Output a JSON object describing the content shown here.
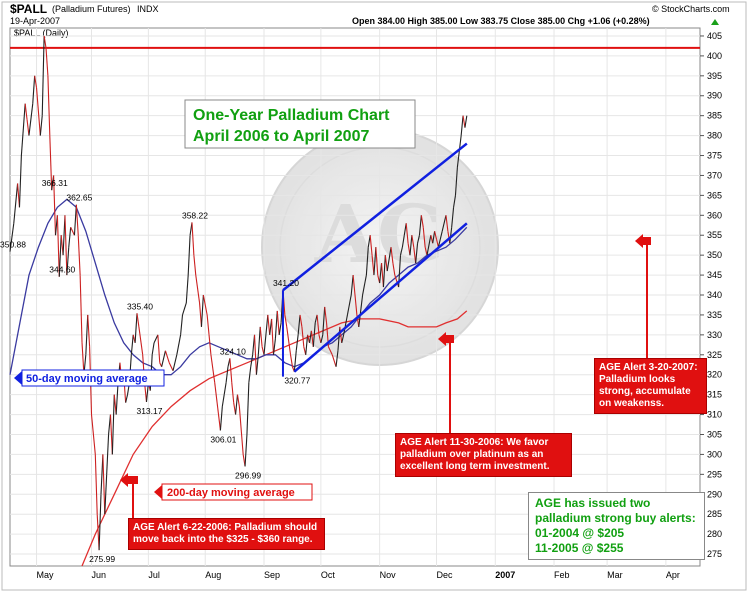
{
  "header": {
    "symbol": "$PALL",
    "name": "(Palladium Futures)",
    "exchange": "INDX",
    "date": "19-Apr-2007",
    "ohlc": "Open 384.00   High 385.00   Low 383.75   Close 385.00   Chg +1.06 (+0.28%)",
    "arrow_icon": "up-arrow-icon",
    "watermark": "© StockCharts.com",
    "series_label": "$PALL (Daily)"
  },
  "title": {
    "line1": "One-Year Palladium Chart",
    "line2": "April 2006 to April 2007"
  },
  "labels": {
    "ma50": "50-day moving average",
    "ma200": "200-day moving average",
    "alert_jun": "AGE Alert 6-22-2006: Palladium should move back into the $325 - $360 range.",
    "alert_nov": "AGE Alert 11-30-2006: We favor palladium over platinum as an excellent long term investment.",
    "alert_mar": "AGE Alert 3-20-2007: Palladium looks strong, accumulate on weakenss.",
    "buy_alerts": [
      "AGE has issued two",
      "palladium strong buy alerts:",
      "01-2004 @ $205",
      "11-2005 @ $255"
    ]
  },
  "colors": {
    "price": "#cc2020",
    "ma50": "#3a3aa0",
    "ma200": "#e03030",
    "trend": "#1020e0",
    "resistance": "#e01010",
    "title_text": "#11a011",
    "alert_text": "#ffffff",
    "alert_bg": "#e01010"
  },
  "chart_data": {
    "type": "line",
    "ylim": [
      272,
      407
    ],
    "y_ticks": [
      275,
      280,
      285,
      290,
      295,
      300,
      305,
      310,
      315,
      320,
      325,
      330,
      335,
      340,
      345,
      350,
      355,
      360,
      365,
      370,
      375,
      380,
      385,
      390,
      395,
      400,
      405
    ],
    "x_ticks": [
      {
        "label": "May",
        "x": 14
      },
      {
        "label": "Jun",
        "x": 43
      },
      {
        "label": "Jul",
        "x": 73
      },
      {
        "label": "Aug",
        "x": 103
      },
      {
        "label": "Sep",
        "x": 134
      },
      {
        "label": "Oct",
        "x": 164
      },
      {
        "label": "Nov",
        "x": 195
      },
      {
        "label": "Dec",
        "x": 225
      },
      {
        "label": "2007",
        "x": 256
      },
      {
        "label": "Feb",
        "x": 287
      },
      {
        "label": "Mar",
        "x": 315
      },
      {
        "label": "Apr",
        "x": 346
      }
    ],
    "xlim": [
      0,
      364
    ],
    "price_series": [
      [
        0,
        350.88
      ],
      [
        2,
        358
      ],
      [
        4,
        368
      ],
      [
        5,
        362
      ],
      [
        6,
        375
      ],
      [
        8,
        388
      ],
      [
        9,
        384
      ],
      [
        10,
        380
      ],
      [
        12,
        388
      ],
      [
        13,
        395
      ],
      [
        14,
        392
      ],
      [
        16,
        380
      ],
      [
        17,
        385
      ],
      [
        18,
        405
      ],
      [
        19,
        402
      ],
      [
        20,
        395
      ],
      [
        21,
        380
      ],
      [
        22,
        366.31
      ],
      [
        23,
        370
      ],
      [
        24,
        355
      ],
      [
        25,
        360
      ],
      [
        26,
        344.6
      ],
      [
        27,
        355
      ],
      [
        28,
        350
      ],
      [
        29,
        360
      ],
      [
        30,
        345
      ],
      [
        31,
        352
      ],
      [
        32,
        357
      ],
      [
        34,
        355
      ],
      [
        35,
        362.65
      ],
      [
        36,
        355
      ],
      [
        37,
        345
      ],
      [
        38,
        328
      ],
      [
        39,
        320
      ],
      [
        40,
        325
      ],
      [
        41,
        335
      ],
      [
        42,
        327
      ],
      [
        43,
        310
      ],
      [
        45,
        300
      ],
      [
        46,
        285
      ],
      [
        47,
        275.99
      ],
      [
        48,
        290
      ],
      [
        49,
        300
      ],
      [
        50,
        285
      ],
      [
        51,
        295
      ],
      [
        52,
        305
      ],
      [
        53,
        310
      ],
      [
        54,
        300
      ],
      [
        55,
        315
      ],
      [
        56,
        310
      ],
      [
        57,
        318
      ],
      [
        58,
        323
      ],
      [
        59,
        318
      ],
      [
        60,
        320
      ],
      [
        61,
        313
      ],
      [
        62,
        315
      ],
      [
        63,
        318
      ],
      [
        64,
        325
      ],
      [
        65,
        330
      ],
      [
        66,
        328
      ],
      [
        67,
        335.4
      ],
      [
        68,
        332
      ],
      [
        70,
        325
      ],
      [
        71,
        318
      ],
      [
        72,
        313.17
      ],
      [
        73,
        318
      ],
      [
        74,
        316
      ],
      [
        75,
        325
      ],
      [
        76,
        328
      ],
      [
        78,
        330
      ],
      [
        79,
        323
      ],
      [
        80,
        322
      ],
      [
        82,
        326
      ],
      [
        84,
        323
      ],
      [
        86,
        321
      ],
      [
        88,
        325
      ],
      [
        90,
        330
      ],
      [
        91,
        335
      ],
      [
        93,
        338
      ],
      [
        94,
        345
      ],
      [
        95,
        355
      ],
      [
        96,
        358.22
      ],
      [
        97,
        350
      ],
      [
        98,
        345
      ],
      [
        100,
        338
      ],
      [
        101,
        332
      ],
      [
        102,
        340
      ],
      [
        104,
        335
      ],
      [
        105,
        330
      ],
      [
        106,
        325
      ],
      [
        108,
        318
      ],
      [
        110,
        310
      ],
      [
        111,
        306.01
      ],
      [
        112,
        312
      ],
      [
        113,
        315
      ],
      [
        114,
        318
      ],
      [
        115,
        322
      ],
      [
        116,
        324.1
      ],
      [
        117,
        318
      ],
      [
        118,
        313
      ],
      [
        119,
        310
      ],
      [
        120,
        315
      ],
      [
        121,
        312
      ],
      [
        122,
        306
      ],
      [
        123,
        300
      ],
      [
        124,
        296.99
      ],
      [
        125,
        305
      ],
      [
        126,
        318
      ],
      [
        127,
        322
      ],
      [
        128,
        325
      ],
      [
        129,
        330
      ],
      [
        130,
        320
      ],
      [
        131,
        325
      ],
      [
        132,
        332
      ],
      [
        133,
        327
      ],
      [
        134,
        325
      ],
      [
        136,
        335
      ],
      [
        137,
        330
      ],
      [
        138,
        334
      ],
      [
        139,
        325
      ],
      [
        140,
        329
      ],
      [
        141,
        336
      ],
      [
        142,
        330
      ],
      [
        143,
        333
      ],
      [
        144,
        341.2
      ],
      [
        145,
        335
      ],
      [
        146,
        332
      ],
      [
        148,
        325
      ],
      [
        149,
        322
      ],
      [
        150,
        320.77
      ],
      [
        151,
        326
      ],
      [
        152,
        330
      ],
      [
        153,
        335
      ],
      [
        154,
        332
      ],
      [
        155,
        327
      ],
      [
        156,
        325
      ],
      [
        157,
        330
      ],
      [
        158,
        328
      ],
      [
        159,
        331
      ],
      [
        160,
        327
      ],
      [
        161,
        333
      ],
      [
        162,
        335
      ],
      [
        163,
        330
      ],
      [
        164,
        328
      ],
      [
        165,
        330
      ],
      [
        166,
        337
      ],
      [
        167,
        333
      ],
      [
        168,
        327
      ],
      [
        170,
        325
      ],
      [
        172,
        322
      ],
      [
        173,
        326
      ],
      [
        174,
        332
      ],
      [
        175,
        328
      ],
      [
        176,
        330
      ],
      [
        178,
        335
      ],
      [
        180,
        340
      ],
      [
        181,
        345
      ],
      [
        182,
        340
      ],
      [
        183,
        335
      ],
      [
        184,
        332
      ],
      [
        186,
        340
      ],
      [
        188,
        345
      ],
      [
        189,
        352
      ],
      [
        190,
        355
      ],
      [
        191,
        350
      ],
      [
        192,
        345
      ],
      [
        193,
        352
      ],
      [
        194,
        345
      ],
      [
        195,
        343
      ],
      [
        196,
        348
      ],
      [
        197,
        342
      ],
      [
        198,
        350
      ],
      [
        199,
        346
      ],
      [
        201,
        352
      ],
      [
        202,
        348
      ],
      [
        203,
        345
      ],
      [
        205,
        342
      ],
      [
        206,
        350
      ],
      [
        207,
        352
      ],
      [
        208,
        355
      ],
      [
        209,
        358
      ],
      [
        210,
        353
      ],
      [
        211,
        350
      ],
      [
        212,
        355
      ],
      [
        213,
        352
      ],
      [
        214,
        348
      ],
      [
        215,
        353
      ],
      [
        216,
        355
      ],
      [
        217,
        360
      ],
      [
        218,
        357
      ],
      [
        219,
        352
      ],
      [
        220,
        350
      ],
      [
        222,
        355
      ],
      [
        223,
        353
      ],
      [
        224,
        356
      ],
      [
        225,
        354
      ],
      [
        226,
        352
      ],
      [
        228,
        356
      ],
      [
        230,
        360
      ],
      [
        231,
        356
      ],
      [
        232,
        353
      ],
      [
        233,
        357
      ],
      [
        234,
        362
      ],
      [
        235,
        365
      ],
      [
        236,
        372
      ],
      [
        237,
        376
      ],
      [
        238,
        380
      ],
      [
        239,
        385
      ],
      [
        240,
        382
      ],
      [
        241,
        385
      ]
    ],
    "ma50_series": [
      [
        0,
        320
      ],
      [
        6,
        335
      ],
      [
        10,
        345
      ],
      [
        15,
        352
      ],
      [
        20,
        358
      ],
      [
        25,
        362
      ],
      [
        30,
        364
      ],
      [
        35,
        362
      ],
      [
        40,
        356
      ],
      [
        45,
        348
      ],
      [
        50,
        340
      ],
      [
        55,
        333
      ],
      [
        60,
        328
      ],
      [
        65,
        325
      ],
      [
        70,
        323
      ],
      [
        75,
        322
      ],
      [
        80,
        320
      ],
      [
        85,
        320
      ],
      [
        90,
        322
      ],
      [
        95,
        325
      ],
      [
        100,
        327
      ],
      [
        105,
        328
      ],
      [
        110,
        327
      ],
      [
        115,
        326
      ],
      [
        120,
        325
      ],
      [
        125,
        324
      ],
      [
        130,
        324
      ],
      [
        135,
        325
      ],
      [
        140,
        325
      ],
      [
        145,
        323
      ],
      [
        150,
        322
      ],
      [
        155,
        323
      ],
      [
        160,
        325
      ],
      [
        165,
        327
      ],
      [
        170,
        328
      ],
      [
        175,
        330
      ],
      [
        180,
        332
      ],
      [
        185,
        335
      ],
      [
        190,
        338
      ],
      [
        195,
        340
      ],
      [
        200,
        343
      ],
      [
        205,
        345
      ],
      [
        210,
        347
      ],
      [
        215,
        348
      ],
      [
        220,
        350
      ],
      [
        225,
        351
      ],
      [
        230,
        352
      ],
      [
        235,
        354
      ],
      [
        241,
        357
      ]
    ],
    "ma200_series": [
      [
        38,
        272
      ],
      [
        45,
        280
      ],
      [
        55,
        290
      ],
      [
        65,
        300
      ],
      [
        75,
        307
      ],
      [
        85,
        312
      ],
      [
        95,
        316
      ],
      [
        105,
        319
      ],
      [
        115,
        321
      ],
      [
        125,
        323
      ],
      [
        135,
        325
      ],
      [
        145,
        327
      ],
      [
        155,
        329
      ],
      [
        165,
        331
      ],
      [
        175,
        333
      ],
      [
        185,
        334
      ],
      [
        195,
        334
      ],
      [
        205,
        333
      ],
      [
        210,
        332
      ],
      [
        215,
        332
      ],
      [
        225,
        332
      ],
      [
        230,
        333
      ],
      [
        236,
        334
      ],
      [
        241,
        336
      ]
    ],
    "channel_upper": [
      [
        144,
        341.2
      ],
      [
        241,
        378
      ]
    ],
    "channel_lower": [
      [
        150,
        320.77
      ],
      [
        241,
        358
      ]
    ],
    "resistance_level": 402,
    "peak_labels": [
      {
        "x": 0,
        "y": 350.88,
        "text": "350.88"
      },
      {
        "x": 22,
        "y": 366.31,
        "text": "366.31"
      },
      {
        "x": 35,
        "y": 362.65,
        "text": "362.65"
      },
      {
        "x": 26,
        "y": 344.6,
        "text": "344.60"
      },
      {
        "x": 47,
        "y": 275.99,
        "text": "275.99"
      },
      {
        "x": 67,
        "y": 335.4,
        "text": "335.40"
      },
      {
        "x": 72,
        "y": 313.17,
        "text": "313.17"
      },
      {
        "x": 96,
        "y": 358.22,
        "text": "358.22"
      },
      {
        "x": 111,
        "y": 306.01,
        "text": "306.01"
      },
      {
        "x": 116,
        "y": 324.1,
        "text": "324.10"
      },
      {
        "x": 124,
        "y": 296.99,
        "text": "296.99"
      },
      {
        "x": 144,
        "y": 341.2,
        "text": "341.20"
      },
      {
        "x": 150,
        "y": 320.77,
        "text": "320.77"
      }
    ]
  }
}
